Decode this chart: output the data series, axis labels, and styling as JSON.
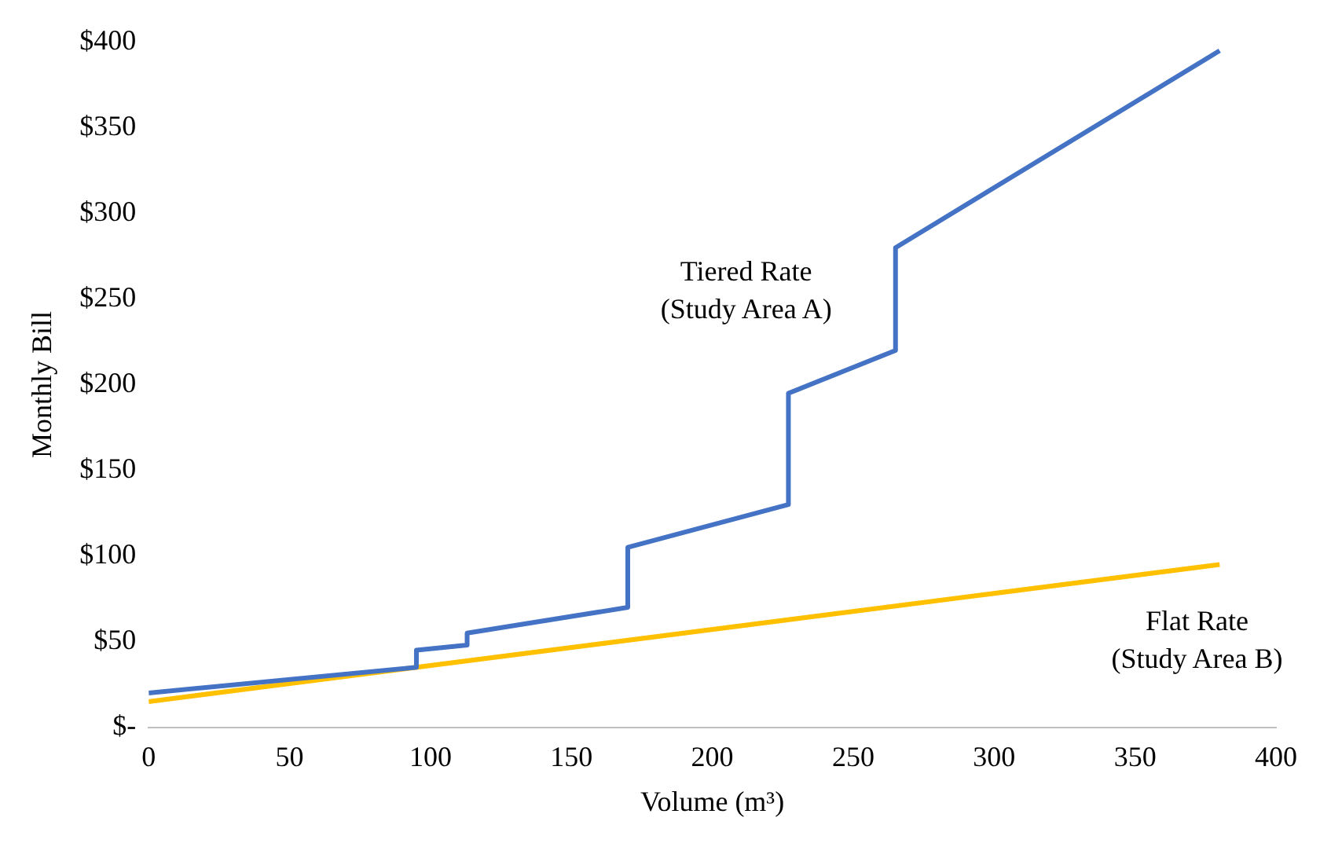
{
  "chart_data": {
    "type": "line",
    "xlabel": "Volume (m³)",
    "ylabel": "Monthly Bill",
    "series": [
      {
        "name": "Tiered Rate (Study Area A)",
        "color": "#4472c4",
        "x": [
          0,
          95,
          95,
          113,
          113,
          170,
          170,
          227,
          227,
          265,
          265,
          380
        ],
        "values": [
          20,
          35,
          45,
          48,
          55,
          70,
          105,
          130,
          195,
          220,
          280,
          395
        ]
      },
      {
        "name": "Flat Rate (Study Area B)",
        "color": "#ffc000",
        "x": [
          0,
          380
        ],
        "values": [
          15,
          95
        ]
      }
    ],
    "xlim": [
      0,
      400
    ],
    "xticks": [
      0,
      50,
      100,
      150,
      200,
      250,
      300,
      350,
      400
    ],
    "ylim": [
      0,
      400
    ],
    "yticks": [
      {
        "value": 0,
        "label": "$-"
      },
      {
        "value": 50,
        "label": "$50"
      },
      {
        "value": 100,
        "label": "$100"
      },
      {
        "value": 150,
        "label": "$150"
      },
      {
        "value": 200,
        "label": "$200"
      },
      {
        "value": 250,
        "label": "$250"
      },
      {
        "value": 300,
        "label": "$300"
      },
      {
        "value": 350,
        "label": "$350"
      },
      {
        "value": 400,
        "label": "$400"
      }
    ],
    "grid": false,
    "legend": false,
    "marker": "none",
    "line_style": "solid"
  }
}
